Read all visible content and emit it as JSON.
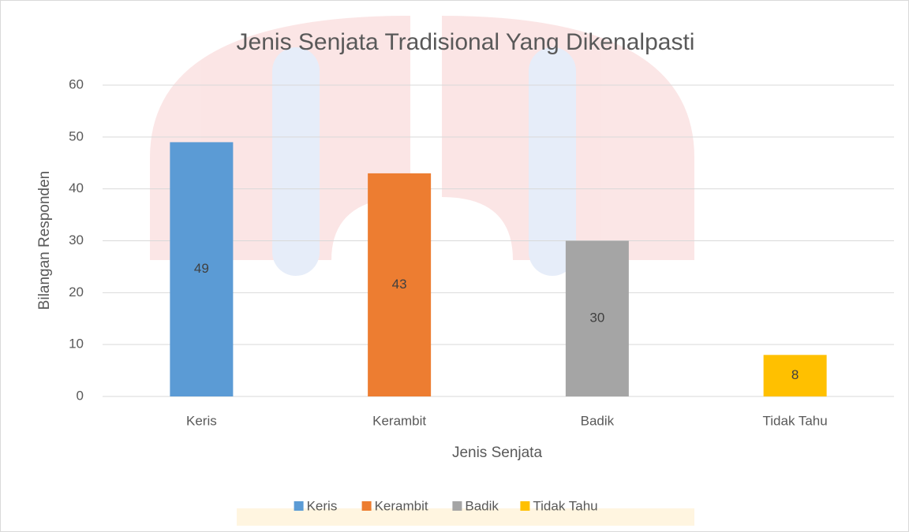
{
  "chart_data": {
    "type": "bar",
    "title": "Jenis Senjata Tradisional Yang Dikenalpasti",
    "x_label": "Jenis Senjata",
    "y_label": "Bilangan Responden",
    "categories": [
      "Keris",
      "Kerambit",
      "Badik",
      "Tidak Tahu"
    ],
    "values": [
      49,
      43,
      30,
      8
    ],
    "colors": [
      "#5b9bd5",
      "#ed7d31",
      "#a5a5a5",
      "#ffc000"
    ],
    "ylim": [
      0,
      60
    ],
    "yticks": [
      0,
      10,
      20,
      30,
      40,
      50,
      60
    ],
    "grid": true,
    "legend": "bottom"
  }
}
